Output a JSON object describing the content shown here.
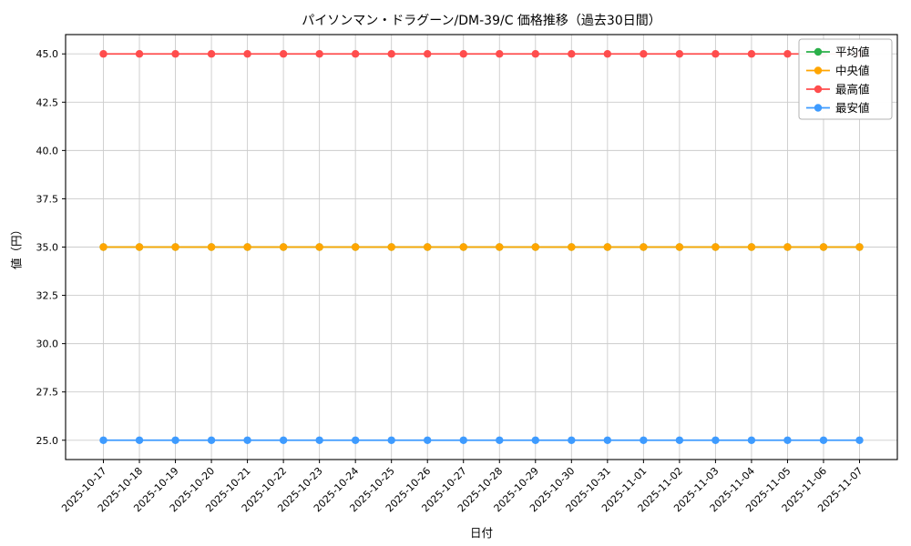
{
  "chart_data": {
    "type": "line",
    "title": "パイソンマン・ドラグーン/DM-39/C 価格推移（過去30日間）",
    "xlabel": "日付",
    "ylabel": "値（円）",
    "x": [
      "2025-10-17",
      "2025-10-18",
      "2025-10-19",
      "2025-10-20",
      "2025-10-21",
      "2025-10-22",
      "2025-10-23",
      "2025-10-24",
      "2025-10-25",
      "2025-10-26",
      "2025-10-27",
      "2025-10-28",
      "2025-10-29",
      "2025-10-30",
      "2025-10-31",
      "2025-11-01",
      "2025-11-02",
      "2025-11-03",
      "2025-11-04",
      "2025-11-05",
      "2025-11-06",
      "2025-11-07"
    ],
    "series": [
      {
        "key": "average",
        "name": "平均値",
        "color": "#2bb04a",
        "values": [
          35.0,
          35.0,
          35.0,
          35.0,
          35.0,
          35.0,
          35.0,
          35.0,
          35.0,
          35.0,
          35.0,
          35.0,
          35.0,
          35.0,
          35.0,
          35.0,
          35.0,
          35.0,
          35.0,
          35.0,
          35.0,
          35.0
        ]
      },
      {
        "key": "median",
        "name": "中央値",
        "color": "#ffa500",
        "values": [
          35.0,
          35.0,
          35.0,
          35.0,
          35.0,
          35.0,
          35.0,
          35.0,
          35.0,
          35.0,
          35.0,
          35.0,
          35.0,
          35.0,
          35.0,
          35.0,
          35.0,
          35.0,
          35.0,
          35.0,
          35.0,
          35.0
        ]
      },
      {
        "key": "highest",
        "name": "最高値",
        "color": "#ff4d4d",
        "values": [
          45.0,
          45.0,
          45.0,
          45.0,
          45.0,
          45.0,
          45.0,
          45.0,
          45.0,
          45.0,
          45.0,
          45.0,
          45.0,
          45.0,
          45.0,
          45.0,
          45.0,
          45.0,
          45.0,
          45.0,
          45.0,
          45.0
        ]
      },
      {
        "key": "lowest",
        "name": "最安値",
        "color": "#3e9bff",
        "values": [
          25.0,
          25.0,
          25.0,
          25.0,
          25.0,
          25.0,
          25.0,
          25.0,
          25.0,
          25.0,
          25.0,
          25.0,
          25.0,
          25.0,
          25.0,
          25.0,
          25.0,
          25.0,
          25.0,
          25.0,
          25.0,
          25.0
        ]
      }
    ],
    "ylim": [
      24,
      46
    ],
    "yticks": [
      25.0,
      27.5,
      30.0,
      32.5,
      35.0,
      37.5,
      40.0,
      42.5,
      45.0
    ],
    "grid": true,
    "grid_color": "#cccccc",
    "background_color": "#ffffff",
    "legend_position": "upper right"
  }
}
